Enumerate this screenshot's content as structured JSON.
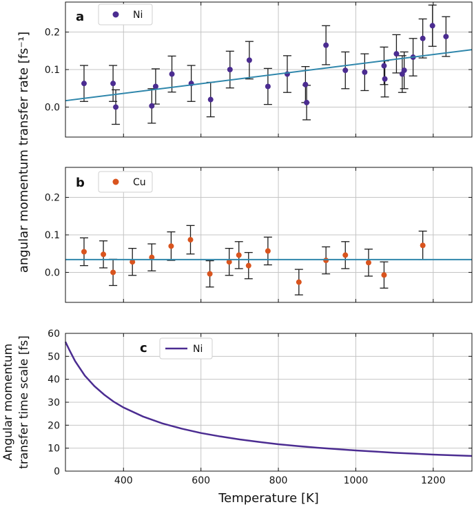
{
  "chart_data": [
    {
      "panel": "a",
      "type": "scatter",
      "ylabel": "angular momentum transfer rate [fs⁻¹]",
      "xlim": [
        250,
        1300
      ],
      "ylim": [
        -0.08,
        0.28
      ],
      "xticks": [
        400,
        600,
        800,
        1000,
        1200
      ],
      "yticks": [
        0.0,
        0.1,
        0.2
      ],
      "ytick_labels": [
        "0.0",
        "0.1",
        "0.2"
      ],
      "grid": true,
      "legend": {
        "position": "top-left",
        "label": "Ni",
        "marker": "dot",
        "color": "#4b2c91"
      },
      "series": [
        {
          "name": "Ni",
          "color": "#4b2c91",
          "points": [
            {
              "x": 298,
              "y": 0.063,
              "err": 0.048
            },
            {
              "x": 373,
              "y": 0.063,
              "err": 0.048
            },
            {
              "x": 380,
              "y": 0.0,
              "err": 0.046
            },
            {
              "x": 473,
              "y": 0.003,
              "err": 0.046
            },
            {
              "x": 483,
              "y": 0.055,
              "err": 0.047
            },
            {
              "x": 525,
              "y": 0.088,
              "err": 0.048
            },
            {
              "x": 575,
              "y": 0.063,
              "err": 0.048
            },
            {
              "x": 625,
              "y": 0.02,
              "err": 0.046
            },
            {
              "x": 675,
              "y": 0.1,
              "err": 0.049
            },
            {
              "x": 725,
              "y": 0.125,
              "err": 0.05
            },
            {
              "x": 773,
              "y": 0.055,
              "err": 0.048
            },
            {
              "x": 823,
              "y": 0.088,
              "err": 0.049
            },
            {
              "x": 870,
              "y": 0.06,
              "err": 0.048
            },
            {
              "x": 873,
              "y": 0.012,
              "err": 0.046
            },
            {
              "x": 923,
              "y": 0.165,
              "err": 0.052
            },
            {
              "x": 973,
              "y": 0.098,
              "err": 0.049
            },
            {
              "x": 1023,
              "y": 0.093,
              "err": 0.049
            },
            {
              "x": 1073,
              "y": 0.11,
              "err": 0.05
            },
            {
              "x": 1075,
              "y": 0.075,
              "err": 0.048
            },
            {
              "x": 1105,
              "y": 0.142,
              "err": 0.051
            },
            {
              "x": 1120,
              "y": 0.088,
              "err": 0.049
            },
            {
              "x": 1125,
              "y": 0.098,
              "err": 0.049
            },
            {
              "x": 1148,
              "y": 0.133,
              "err": 0.05
            },
            {
              "x": 1173,
              "y": 0.183,
              "err": 0.052
            },
            {
              "x": 1198,
              "y": 0.217,
              "err": 0.055
            },
            {
              "x": 1233,
              "y": 0.188,
              "err": 0.053
            }
          ]
        },
        {
          "kind": "fit-line",
          "color": "#2e86ab",
          "x": [
            250,
            1300
          ],
          "y": [
            0.017,
            0.153
          ]
        }
      ]
    },
    {
      "panel": "b",
      "type": "scatter",
      "xlim": [
        250,
        1300
      ],
      "ylim": [
        -0.08,
        0.28
      ],
      "xticks": [
        400,
        600,
        800,
        1000,
        1200
      ],
      "yticks": [
        0.0,
        0.1,
        0.2
      ],
      "ytick_labels": [
        "0.0",
        "0.1",
        "0.2"
      ],
      "grid": true,
      "legend": {
        "position": "top-left",
        "label": "Cu",
        "marker": "dot",
        "color": "#d9541e"
      },
      "series": [
        {
          "name": "Cu",
          "color": "#d9541e",
          "points": [
            {
              "x": 298,
              "y": 0.055,
              "err": 0.037
            },
            {
              "x": 348,
              "y": 0.048,
              "err": 0.036
            },
            {
              "x": 373,
              "y": 0.0,
              "err": 0.035
            },
            {
              "x": 423,
              "y": 0.028,
              "err": 0.036
            },
            {
              "x": 473,
              "y": 0.04,
              "err": 0.036
            },
            {
              "x": 523,
              "y": 0.07,
              "err": 0.038
            },
            {
              "x": 573,
              "y": 0.087,
              "err": 0.038
            },
            {
              "x": 623,
              "y": -0.004,
              "err": 0.035
            },
            {
              "x": 673,
              "y": 0.028,
              "err": 0.036
            },
            {
              "x": 698,
              "y": 0.046,
              "err": 0.036
            },
            {
              "x": 723,
              "y": 0.018,
              "err": 0.035
            },
            {
              "x": 773,
              "y": 0.057,
              "err": 0.037
            },
            {
              "x": 853,
              "y": -0.026,
              "err": 0.034
            },
            {
              "x": 923,
              "y": 0.032,
              "err": 0.036
            },
            {
              "x": 973,
              "y": 0.046,
              "err": 0.036
            },
            {
              "x": 1033,
              "y": 0.026,
              "err": 0.036
            },
            {
              "x": 1073,
              "y": -0.007,
              "err": 0.035
            },
            {
              "x": 1173,
              "y": 0.072,
              "err": 0.038
            }
          ]
        },
        {
          "kind": "fit-line",
          "color": "#2e86ab",
          "x": [
            250,
            1300
          ],
          "y": [
            0.034,
            0.034
          ]
        }
      ]
    },
    {
      "panel": "c",
      "type": "line",
      "xlabel": "Temperature [K]",
      "ylabel_lines": [
        "Angular momentum",
        "transfer time scale [fs]"
      ],
      "xlim": [
        250,
        1300
      ],
      "ylim": [
        0,
        60
      ],
      "xticks": [
        400,
        600,
        800,
        1000,
        1200
      ],
      "yticks": [
        0,
        10,
        20,
        30,
        40,
        50,
        60
      ],
      "grid": true,
      "legend": {
        "position": "upper-middle-left",
        "label": "Ni",
        "marker": "line",
        "color": "#4b2c91"
      },
      "series": [
        {
          "name": "Ni",
          "color": "#4b2c91",
          "x": [
            250,
            260,
            275,
            300,
            325,
            350,
            375,
            400,
            450,
            500,
            550,
            600,
            650,
            700,
            750,
            800,
            850,
            900,
            950,
            1000,
            1050,
            1100,
            1150,
            1200,
            1250,
            1300
          ],
          "y": [
            56.3,
            52.8,
            47.9,
            41.6,
            37.0,
            33.3,
            30.2,
            27.7,
            23.8,
            20.8,
            18.5,
            16.6,
            15.1,
            13.8,
            12.7,
            11.7,
            10.9,
            10.2,
            9.6,
            9.0,
            8.5,
            8.0,
            7.6,
            7.2,
            6.9,
            6.6
          ]
        }
      ]
    }
  ]
}
